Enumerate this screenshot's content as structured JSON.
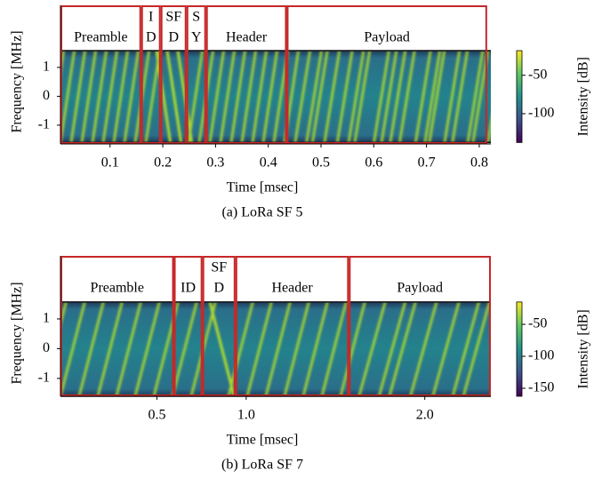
{
  "chart_data": [
    {
      "type": "spectrogram",
      "xlabel": "Time [msec]",
      "ylabel": "Frequency [MHz]",
      "caption": "(a) LoRa SF 5",
      "xlim": [
        0.006,
        0.822
      ],
      "xticks": [
        0.1,
        0.2,
        0.3,
        0.4,
        0.5,
        0.6,
        0.7,
        0.8
      ],
      "ylim": [
        -1.65,
        3.15
      ],
      "yticks": [
        1,
        0,
        -1
      ],
      "band": [
        -1.6,
        1.58
      ],
      "region_color": "#c62828",
      "regions": [
        {
          "label": [
            "Preamble"
          ],
          "start": 0.006,
          "end": 0.159
        },
        {
          "label": [
            "I",
            "D"
          ],
          "start": 0.159,
          "end": 0.196
        },
        {
          "label": [
            "SF",
            "D"
          ],
          "start": 0.196,
          "end": 0.245
        },
        {
          "label": [
            "S",
            "Y"
          ],
          "start": 0.245,
          "end": 0.282
        },
        {
          "label": [
            "Header"
          ],
          "start": 0.282,
          "end": 0.435
        },
        {
          "label": [
            "Payload"
          ],
          "start": 0.435,
          "end": 0.815
        }
      ],
      "colorbar": {
        "label": "Intensity [dB]",
        "lim": [
          -137.5,
          -18
        ],
        "ticks": [
          -50,
          -100
        ]
      }
    },
    {
      "type": "spectrogram",
      "xlabel": "Time [msec]",
      "ylabel": "Frequency [MHz]",
      "caption": "(b) LoRa SF 7",
      "xlim": [
        -0.04,
        2.37
      ],
      "xticks": [
        0.5,
        {
          "value": 1,
          "label": "1.0"
        },
        {
          "value": 2,
          "label": "2.0"
        }
      ],
      "ylim": [
        -1.6,
        3.12
      ],
      "yticks": [
        1,
        0,
        -1
      ],
      "band": [
        -1.6,
        1.57
      ],
      "region_color": "#c62828",
      "regions": [
        {
          "label": [
            "Preamble"
          ],
          "start": -0.04,
          "end": 0.595
        },
        {
          "label": [
            "ID"
          ],
          "start": 0.595,
          "end": 0.755
        },
        {
          "label": [
            "SF",
            "D"
          ],
          "start": 0.755,
          "end": 0.94
        },
        {
          "label": [
            "Header"
          ],
          "start": 0.94,
          "end": 1.575
        },
        {
          "label": [
            "Payload"
          ],
          "start": 1.575,
          "end": 2.37
        }
      ],
      "colorbar": {
        "label": "Intensity [dB]",
        "lim": [
          -162.5,
          -15
        ],
        "ticks": [
          -50,
          -100,
          -150
        ]
      }
    }
  ]
}
